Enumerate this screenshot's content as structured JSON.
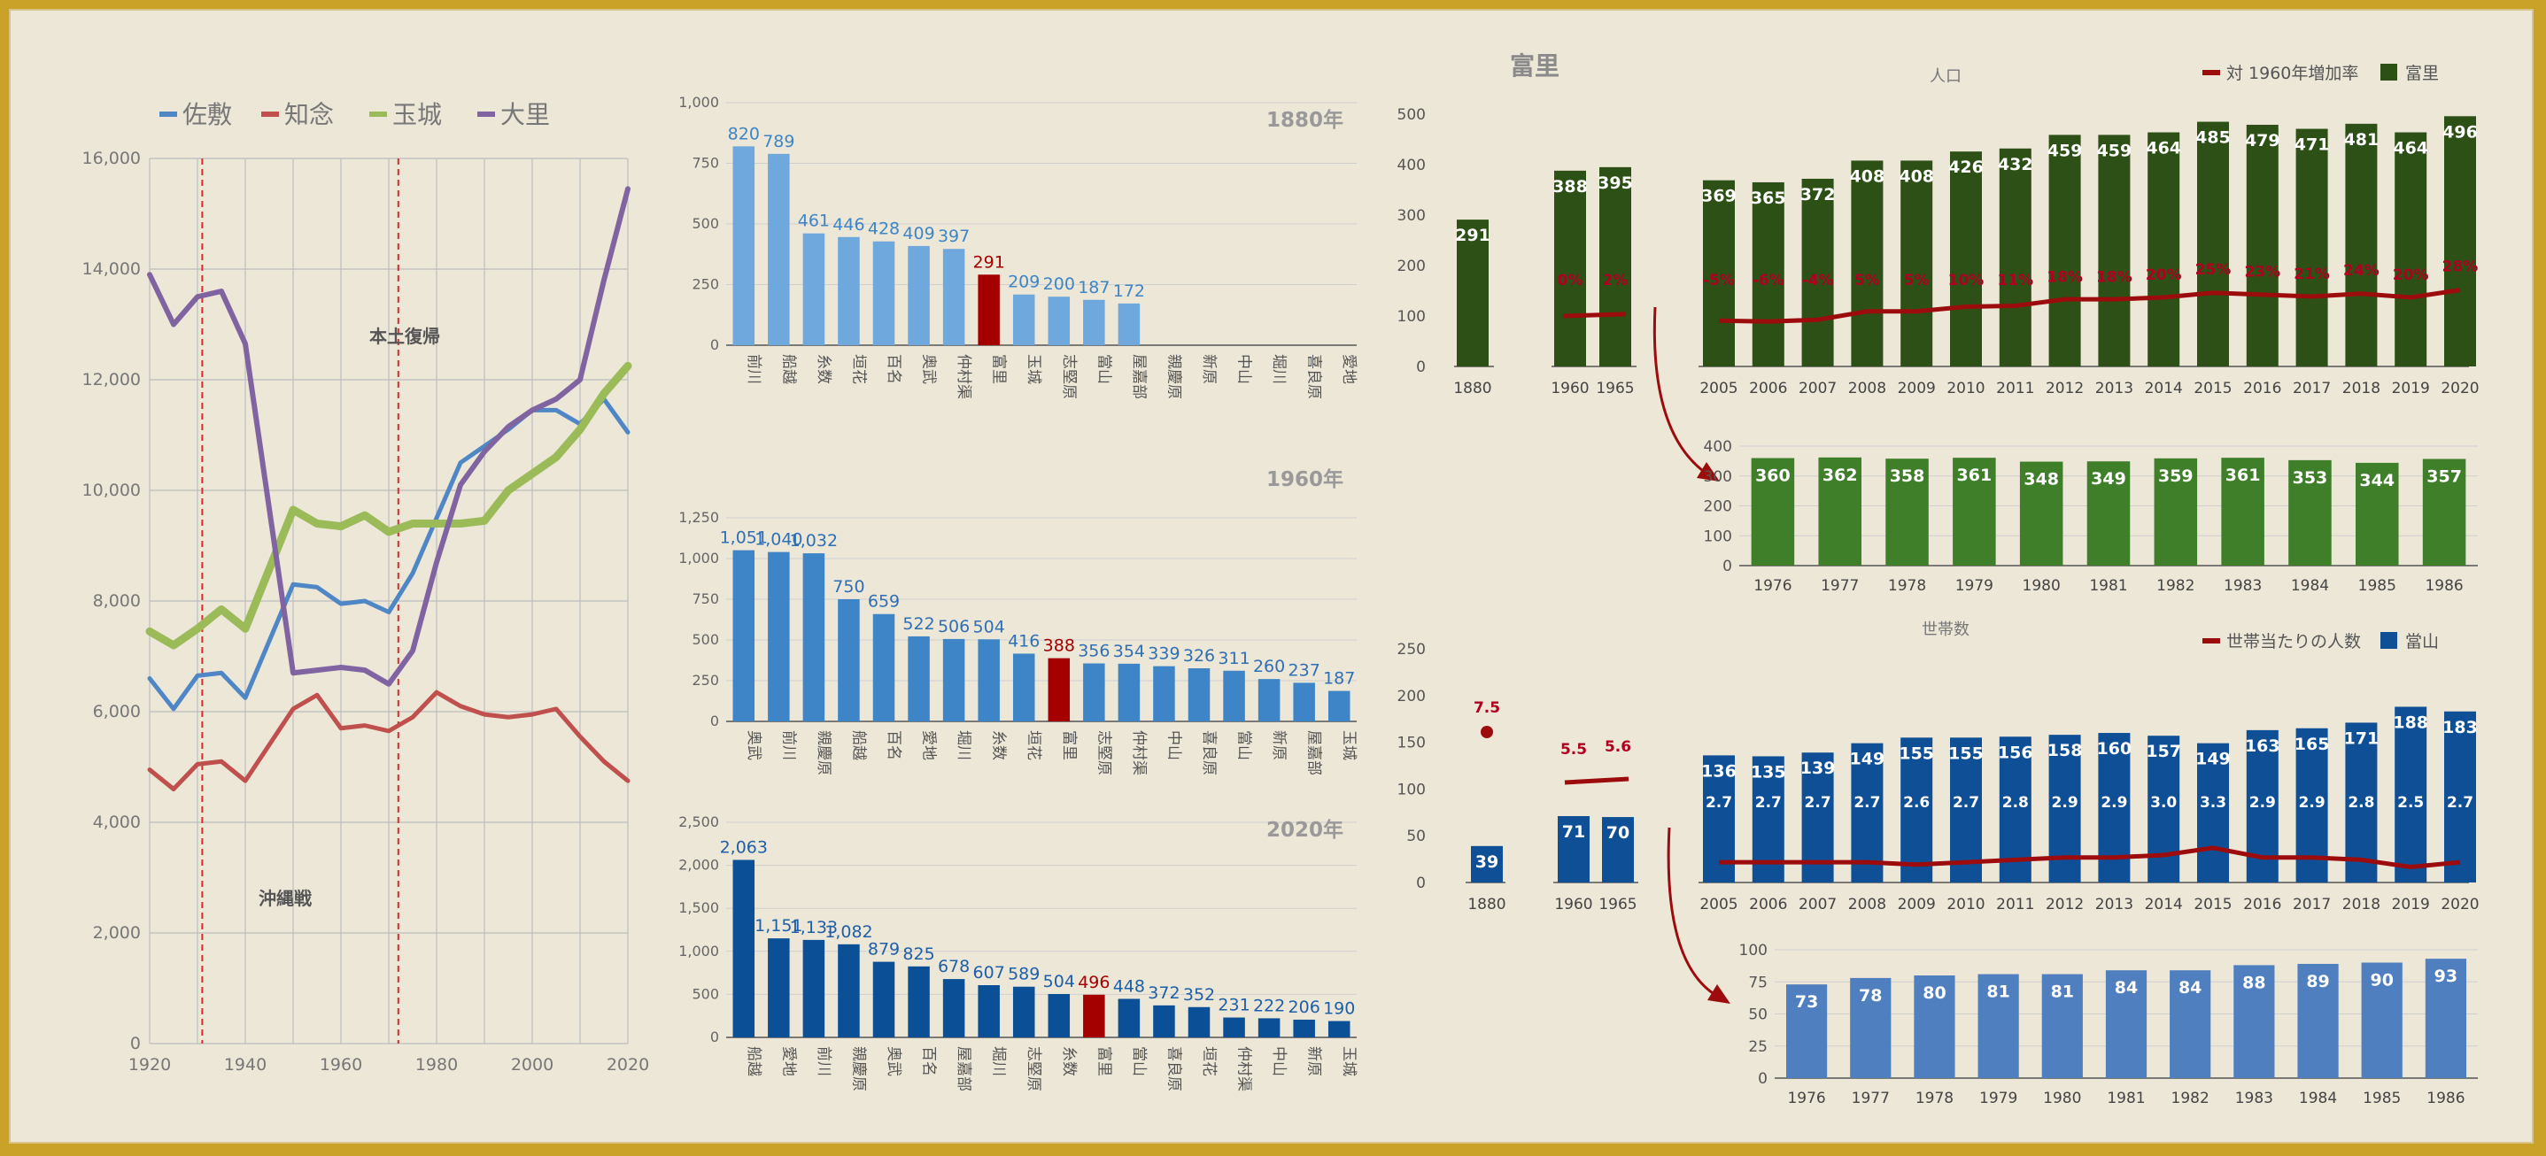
{
  "colors": {
    "background": "#ede7d8",
    "border": "#c9a227",
    "sashiki": "#4f86c6",
    "chinen": "#c0504d",
    "tamagusuku": "#9bbb59",
    "ozato": "#8064a2",
    "highlight": "#a50000",
    "pop_dark": "#2d5016",
    "pop_light": "#3f7f2a",
    "hh_dark": "#0e4f96",
    "hh_light": "#4f7fbf",
    "rate_line": "#9c0c0c"
  },
  "chart_data": [
    {
      "id": "line",
      "type": "line",
      "x_ticks": [
        "1920",
        "1940",
        "1960",
        "1980",
        "2000",
        "2020"
      ],
      "y_ticks": [
        "0",
        "2,000",
        "4,000",
        "6,000",
        "8,000",
        "10,000",
        "12,000",
        "14,000",
        "16,000"
      ],
      "xlim": [
        1920,
        2020
      ],
      "ylim": [
        0,
        16000
      ],
      "legend": [
        "佐敷",
        "知念",
        "玉城",
        "大里"
      ],
      "annotations": [
        {
          "text": "本土復帰",
          "x": 1972,
          "y": 11400
        },
        {
          "text": "沖縄戦",
          "x": 1950,
          "y": 2650
        }
      ],
      "vlines": [
        1931,
        1972
      ],
      "x": [
        1920,
        1925,
        1930,
        1935,
        1940,
        1950,
        1955,
        1960,
        1965,
        1970,
        1975,
        1980,
        1985,
        1990,
        1995,
        2000,
        2005,
        2010,
        2015,
        2020
      ],
      "series": [
        {
          "name": "佐敷",
          "values": [
            6600,
            6050,
            6650,
            6700,
            6250,
            8300,
            8250,
            7950,
            8000,
            7800,
            8500,
            9500,
            10500,
            10800,
            11100,
            11450,
            11450,
            11200,
            11650,
            11050
          ]
        },
        {
          "name": "知念",
          "values": [
            4950,
            4600,
            5050,
            5100,
            4750,
            6050,
            6300,
            5700,
            5750,
            5650,
            5900,
            6350,
            6100,
            5950,
            5900,
            5950,
            6050,
            5550,
            5100,
            4750
          ]
        },
        {
          "name": "玉城",
          "values": [
            7450,
            7200,
            7500,
            7850,
            7500,
            9650,
            9400,
            9350,
            9550,
            9250,
            9400,
            9400,
            9400,
            9450,
            10000,
            10300,
            10600,
            11100,
            11750,
            12250
          ]
        },
        {
          "name": "大里",
          "values": [
            13900,
            13000,
            13500,
            13600,
            12650,
            6700,
            6750,
            6800,
            6750,
            6500,
            7100,
            8700,
            10100,
            10700,
            11150,
            11450,
            11650,
            12000,
            13800,
            15450
          ]
        }
      ]
    },
    {
      "id": "bar1880",
      "type": "bar",
      "title": "1880年",
      "y_ticks": [
        "0",
        "250",
        "500",
        "750",
        "1,000"
      ],
      "ylim": [
        0,
        1000
      ],
      "categories": [
        "前川",
        "船越",
        "糸数",
        "垣花",
        "百名",
        "奥武",
        "仲村渠",
        "富里",
        "玉城",
        "志堅原",
        "當山",
        "屋嘉部",
        "親慶原",
        "新原",
        "中山",
        "堀川",
        "喜良原",
        "愛地"
      ],
      "values": [
        820,
        789,
        461,
        446,
        428,
        409,
        397,
        291,
        209,
        200,
        187,
        172,
        null,
        null,
        null,
        null,
        null,
        null
      ],
      "labels": [
        "820",
        "789",
        "461",
        "446",
        "428",
        "409",
        "397",
        "291",
        "209",
        "200",
        "187",
        "172",
        "",
        "",
        "",
        "",
        "",
        ""
      ],
      "highlight_index": 7
    },
    {
      "id": "bar1960",
      "type": "bar",
      "title": "1960年",
      "y_ticks": [
        "0",
        "250",
        "500",
        "750",
        "1,000",
        "1,250"
      ],
      "ylim": [
        0,
        1250
      ],
      "categories": [
        "奥武",
        "前川",
        "親慶原",
        "船越",
        "百名",
        "愛地",
        "堀川",
        "糸数",
        "垣花",
        "富里",
        "志堅原",
        "仲村渠",
        "中山",
        "喜良原",
        "當山",
        "新原",
        "屋嘉部",
        "玉城"
      ],
      "values": [
        1051,
        1040,
        1032,
        750,
        659,
        522,
        506,
        504,
        416,
        388,
        356,
        354,
        339,
        326,
        311,
        260,
        237,
        187
      ],
      "labels": [
        "1,051",
        "1,040",
        "1,032",
        "750",
        "659",
        "522",
        "506",
        "504",
        "416",
        "388",
        "356",
        "354",
        "339",
        "326",
        "311",
        "260",
        "237",
        "187"
      ],
      "highlight_index": 9
    },
    {
      "id": "bar2020",
      "type": "bar",
      "title": "2020年",
      "y_ticks": [
        "0",
        "500",
        "1,000",
        "1,500",
        "2,000",
        "2,500"
      ],
      "ylim": [
        0,
        2500
      ],
      "categories": [
        "船越",
        "愛地",
        "前川",
        "親慶原",
        "奥武",
        "百名",
        "屋嘉部",
        "堀川",
        "志堅原",
        "糸数",
        "富里",
        "當山",
        "喜良原",
        "垣花",
        "仲村渠",
        "中山",
        "新原",
        "玉城"
      ],
      "values": [
        2063,
        1151,
        1133,
        1082,
        879,
        825,
        678,
        607,
        589,
        504,
        496,
        448,
        372,
        352,
        231,
        222,
        206,
        190
      ],
      "labels": [
        "2,063",
        "1,151",
        "1,133",
        "1,082",
        "879",
        "825",
        "678",
        "607",
        "589",
        "504",
        "496",
        "448",
        "372",
        "352",
        "231",
        "222",
        "206",
        "190"
      ],
      "highlight_index": 10
    },
    {
      "id": "popTop",
      "type": "bar",
      "title": "人口",
      "y_ticks": [
        "0",
        "100",
        "200",
        "300",
        "400",
        "500"
      ],
      "ylim": [
        0,
        500
      ],
      "legend": [
        "対 1960年増加率",
        "富里"
      ],
      "categories": [
        "1880",
        "1960",
        "1965",
        "2005",
        "2006",
        "2007",
        "2008",
        "2009",
        "2010",
        "2011",
        "2012",
        "2013",
        "2014",
        "2015",
        "2016",
        "2017",
        "2018",
        "2019",
        "2020"
      ],
      "values": [
        291,
        388,
        395,
        369,
        365,
        372,
        408,
        408,
        426,
        432,
        459,
        459,
        464,
        485,
        479,
        471,
        481,
        464,
        496
      ],
      "rate": [
        null,
        0,
        2,
        -5,
        -6,
        -4,
        5,
        5,
        10,
        11,
        18,
        18,
        20,
        25,
        23,
        21,
        24,
        20,
        28
      ],
      "rate_labels": [
        "",
        "0%",
        "2%",
        "-5%",
        "-6%",
        "-4%",
        "5%",
        "5%",
        "10%",
        "11%",
        "18%",
        "18%",
        "20%",
        "25%",
        "23%",
        "21%",
        "24%",
        "20%",
        "28%"
      ]
    },
    {
      "id": "popSub",
      "type": "bar",
      "y_ticks": [
        "0",
        "100",
        "200",
        "300",
        "400"
      ],
      "ylim": [
        0,
        400
      ],
      "categories": [
        "1976",
        "1977",
        "1978",
        "1979",
        "1980",
        "1981",
        "1982",
        "1983",
        "1984",
        "1985",
        "1986"
      ],
      "values": [
        360,
        362,
        358,
        361,
        348,
        349,
        359,
        361,
        353,
        344,
        357
      ]
    },
    {
      "id": "hhTop",
      "type": "bar",
      "title": "世帯数",
      "y_ticks": [
        "0",
        "50",
        "100",
        "150",
        "200",
        "250"
      ],
      "ylim": [
        0,
        250
      ],
      "legend": [
        "世帯当たりの人数",
        "當山"
      ],
      "categories": [
        "1880",
        "1960",
        "1965",
        "2005",
        "2006",
        "2007",
        "2008",
        "2009",
        "2010",
        "2011",
        "2012",
        "2013",
        "2014",
        "2015",
        "2016",
        "2017",
        "2018",
        "2019",
        "2020"
      ],
      "values": [
        39,
        71,
        70,
        136,
        135,
        139,
        149,
        155,
        155,
        156,
        158,
        160,
        157,
        149,
        163,
        165,
        171,
        188,
        183
      ],
      "persons": [
        7.5,
        5.5,
        5.6,
        2.7,
        2.7,
        2.7,
        2.7,
        2.6,
        2.7,
        2.8,
        2.9,
        2.9,
        3.0,
        3.3,
        2.9,
        2.9,
        2.8,
        2.5,
        2.7
      ],
      "persons_labels": [
        "7.5",
        "5.5",
        "5.6",
        "2.7",
        "2.7",
        "2.7",
        "2.7",
        "2.6",
        "2.7",
        "2.8",
        "2.9",
        "2.9",
        "3.0",
        "3.3",
        "2.9",
        "2.9",
        "2.8",
        "2.5",
        "2.7"
      ]
    },
    {
      "id": "hhSub",
      "type": "bar",
      "y_ticks": [
        "0",
        "25",
        "50",
        "75",
        "100"
      ],
      "ylim": [
        0,
        100
      ],
      "categories": [
        "1976",
        "1977",
        "1978",
        "1979",
        "1980",
        "1981",
        "1982",
        "1983",
        "1984",
        "1985",
        "1986"
      ],
      "values": [
        73,
        78,
        80,
        81,
        81,
        84,
        84,
        88,
        89,
        90,
        93
      ]
    }
  ],
  "panel_title": "富里"
}
